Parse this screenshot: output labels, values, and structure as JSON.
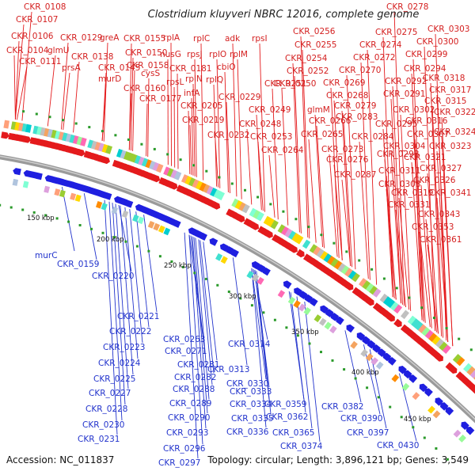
{
  "title": "Clostridium kluyveri NBRC 12016, complete genome",
  "footer": {
    "accession": "Accession: NC_011837",
    "summary": "Topology: circular; Length: 3,896,121 bp; Genes: 3,549"
  },
  "ticks": [
    "150 kbp",
    "200 kbp",
    "250 kbp",
    "300 kbp",
    "350 kbp",
    "400 kbp",
    "450 kbp"
  ],
  "colors": {
    "forward": "#e41a1c",
    "reverse": "#1f1fe0",
    "backbone": "#8c8c8c"
  },
  "top_labels": [
    "CKR_0108",
    "CKR_0107",
    "CKR_0106",
    "CKR_0104",
    "glmU",
    "CKR_0111",
    "CKR_0129",
    "greA",
    "CKR_0138",
    "prsA",
    "CKR_0145",
    "murD",
    "CKR_0155",
    "rplA",
    "CKR_0150",
    "nusG",
    "CKR_0158",
    "cysS",
    "CKR_0160",
    "CKR_0177",
    "rplC",
    "adk",
    "rpsI",
    "rpsJ",
    "rplO",
    "rplM",
    "CKR_0181",
    "rpsL",
    "rplN",
    "cbiO",
    "rplQ",
    "infA",
    "CKR_0205",
    "CKR_0219",
    "CKR_0229",
    "CKR_0232",
    "CKR_0278",
    "CKR_0256",
    "CKR_0275",
    "CKR_0303",
    "CKR_0255",
    "CKR_0274",
    "CKR_0300",
    "CKR_0254",
    "CKR_0272",
    "CKR_0299",
    "CKR_0252",
    "CKR_0270",
    "CKR_0294",
    "CKR_0250",
    "CKR_0269",
    "CKR_0292",
    "CKR_0318",
    "CKR_0251",
    "CKR_0268",
    "CKR_0291",
    "CKR_0317",
    "CKR_0249",
    "glmM",
    "CKR_0279",
    "CKR_0302",
    "CKR_0315",
    "CKR_0248",
    "CKR_0266",
    "CKR_0283",
    "CKR_0316",
    "CKR_0322",
    "CKR_0253",
    "CKR_0265",
    "CKR_0295",
    "CKR_0307",
    "CKR_0324",
    "CKR_0264",
    "CKR_0273",
    "CKR_0284",
    "CKR_0304",
    "CKR_0323",
    "CKR_0276",
    "CKR_0298",
    "CKR_0321",
    "CKR_0287",
    "CKR_0311",
    "CKR_0327",
    "CKR_0308",
    "CKR_0326",
    "CKR_0319",
    "CKR_0341",
    "CKR_0331",
    "CKR_0343",
    "CKR_0353",
    "CKR_0361"
  ],
  "bottom_labels": [
    "murC",
    "CKR_0159",
    "CKR_0220",
    "CKR_0221",
    "CKR_0222",
    "CKR_0223",
    "CKR_0224",
    "CKR_0225",
    "CKR_0227",
    "CKR_0228",
    "CKR_0230",
    "CKR_0231",
    "CKR_0263",
    "CKR_0271",
    "CKR_0281",
    "CKR_0282",
    "CKR_0288",
    "CKR_0289",
    "CKR_0290",
    "CKR_0293",
    "CKR_0296",
    "CKR_0297",
    "CKR_0314",
    "CKR_0313",
    "CKR_0330",
    "CKR_0333",
    "CKR_0334",
    "CKR_0335",
    "CKR_0336",
    "CKR_0359",
    "CKR_0362",
    "CKR_0365",
    "CKR_0374",
    "CKR_0382",
    "CKR_0390",
    "CKR_0397",
    "CKR_0430"
  ]
}
